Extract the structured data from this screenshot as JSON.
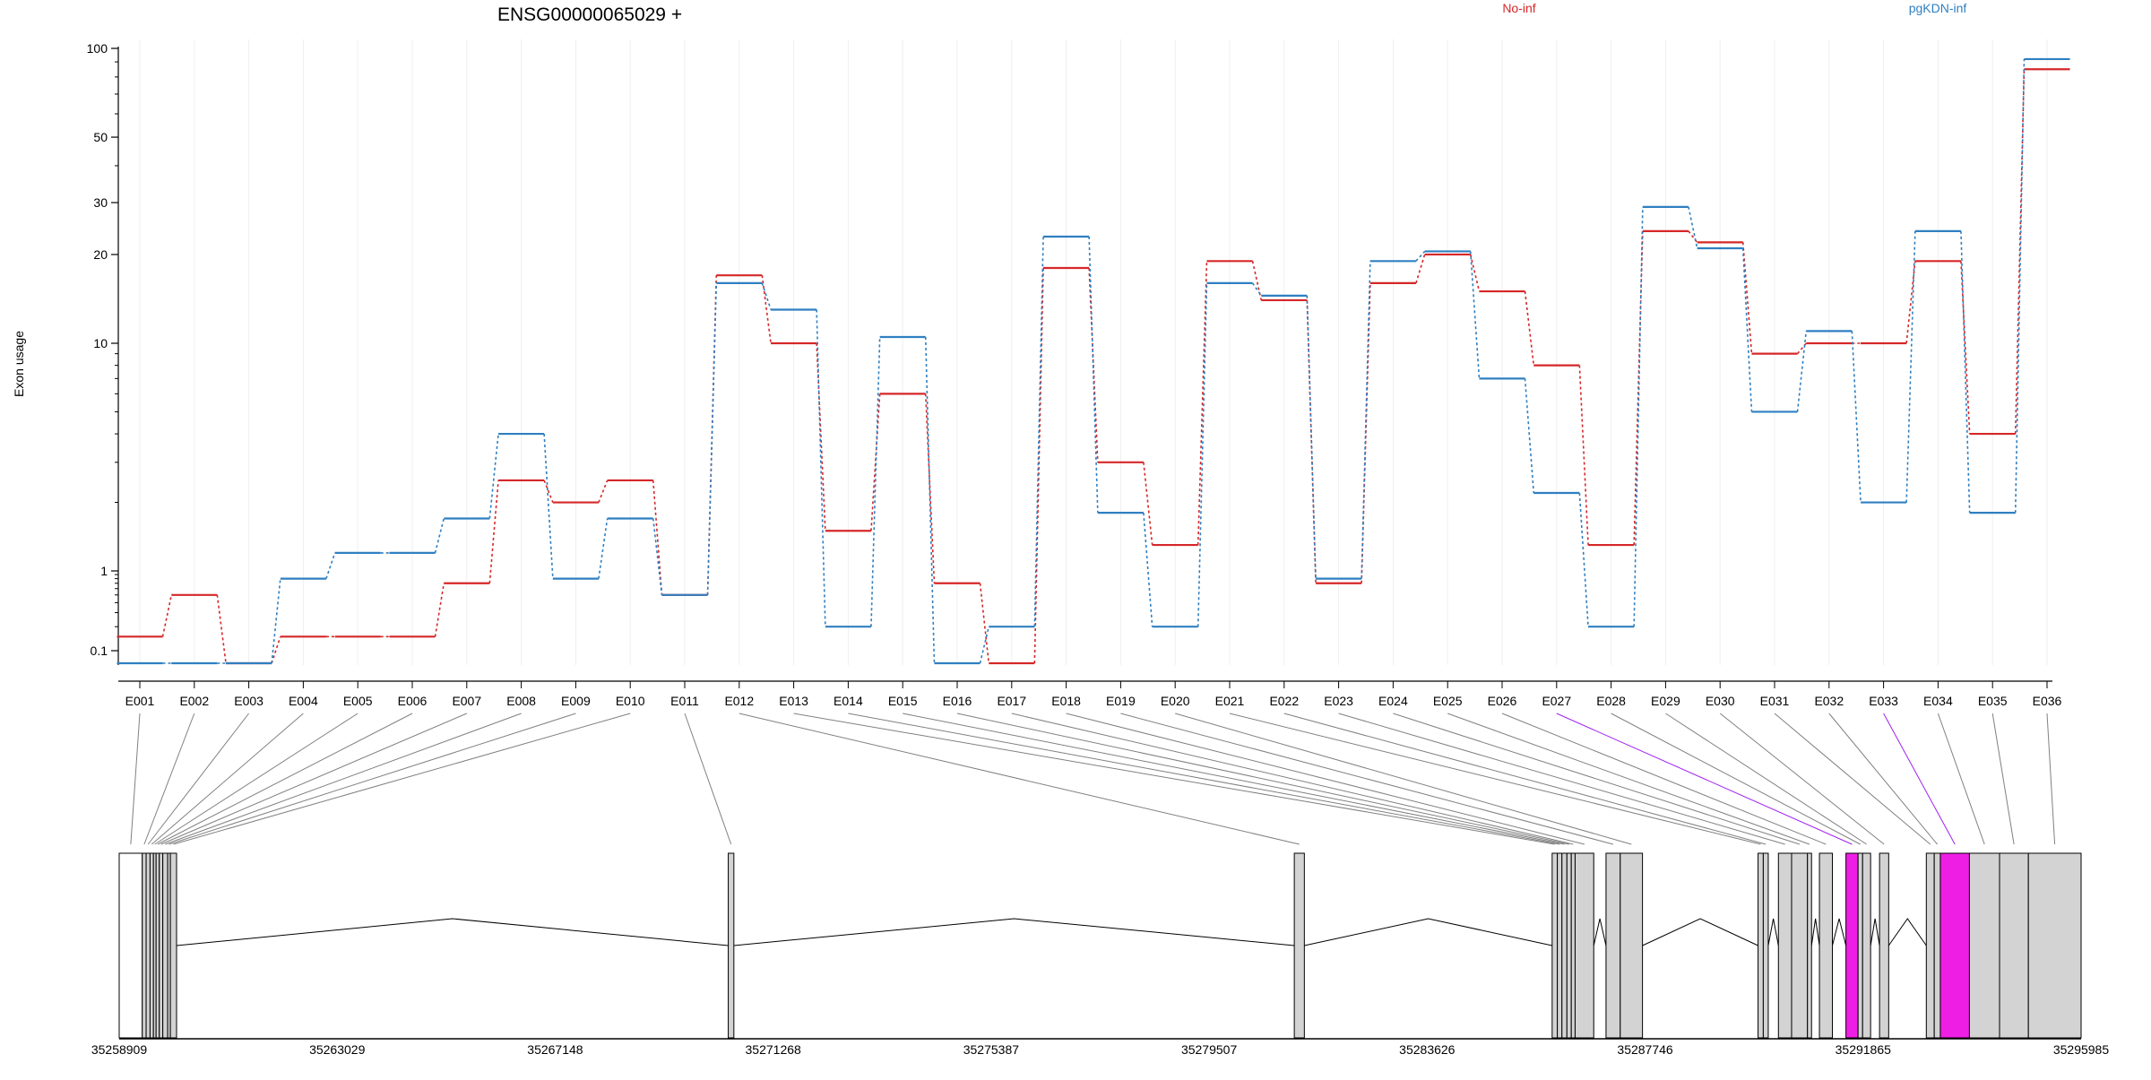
{
  "header": {
    "gene_label": "ENSG00000065029 +",
    "legend": [
      {
        "label": "No-inf",
        "color": "#d62728"
      },
      {
        "label": "pgKDN-inf",
        "color": "#2f7fc1"
      }
    ]
  },
  "chart_data": {
    "type": "line",
    "ylabel": "Exon usage",
    "yscale": "log",
    "y_ticks": [
      0.1,
      1,
      10,
      20,
      30,
      50,
      100
    ],
    "categories": [
      "E001",
      "E002",
      "E003",
      "E004",
      "E005",
      "E006",
      "E007",
      "E008",
      "E009",
      "E010",
      "E011",
      "E012",
      "E013",
      "E014",
      "E015",
      "E016",
      "E017",
      "E018",
      "E019",
      "E020",
      "E021",
      "E022",
      "E023",
      "E024",
      "E025",
      "E026",
      "E027",
      "E028",
      "E029",
      "E030",
      "E031",
      "E032",
      "E033",
      "E034",
      "E035",
      "E036"
    ],
    "series": [
      {
        "name": "No-inf",
        "color": "#d62728",
        "values": [
          0.15,
          0.5,
          0.07,
          0.15,
          0.15,
          0.15,
          0.7,
          2.5,
          2,
          2.5,
          0.5,
          17,
          10,
          1.5,
          6,
          0.7,
          0.07,
          18,
          3,
          1.3,
          19,
          14,
          0.7,
          16,
          20,
          15,
          8,
          1.3,
          24,
          22,
          9,
          10,
          10,
          19,
          4,
          85
        ]
      },
      {
        "name": "pgKDN-inf",
        "color": "#2f7fc1",
        "values": [
          0.07,
          0.07,
          0.07,
          0.8,
          1.2,
          1.2,
          1.7,
          4,
          0.8,
          1.7,
          0.5,
          16,
          13,
          0.2,
          10.5,
          0.07,
          0.2,
          23,
          1.8,
          0.2,
          16,
          14.5,
          0.8,
          19,
          20.5,
          7,
          2.2,
          0.2,
          29,
          21,
          5,
          11,
          2,
          24,
          1.8,
          92
        ]
      }
    ],
    "highlighted_exons": [
      "E027",
      "E033"
    ],
    "gene_model": {
      "highlight_color": "#ee1ee4",
      "coordinate_labels": [
        "35258909",
        "35263029",
        "35267148",
        "35271268",
        "35275387",
        "35279507",
        "35283626",
        "35287746",
        "35291865",
        "35295985"
      ],
      "exons": [
        {
          "id": "E001",
          "start": 35258909,
          "end": 35259345
        },
        {
          "id": "E002",
          "start": 35259345,
          "end": 35259418
        },
        {
          "id": "E003",
          "start": 35259418,
          "end": 35259492
        },
        {
          "id": "E004",
          "start": 35259492,
          "end": 35259556
        },
        {
          "id": "E005",
          "start": 35259556,
          "end": 35259606
        },
        {
          "id": "E006",
          "start": 35259606,
          "end": 35259667
        },
        {
          "id": "E007",
          "start": 35259667,
          "end": 35259733
        },
        {
          "id": "E008",
          "start": 35259733,
          "end": 35259825
        },
        {
          "id": "E009",
          "start": 35259825,
          "end": 35259876
        },
        {
          "id": "E010",
          "start": 35259876,
          "end": 35259993
        },
        {
          "id": "E011",
          "start": 35270419,
          "end": 35270525
        },
        {
          "id": "E012",
          "start": 35281116,
          "end": 35281306
        },
        {
          "id": "E013",
          "start": 35285989,
          "end": 35286087
        },
        {
          "id": "E014",
          "start": 35286087,
          "end": 35286174
        },
        {
          "id": "E015",
          "start": 35286174,
          "end": 35286268
        },
        {
          "id": "E016",
          "start": 35286268,
          "end": 35286351
        },
        {
          "id": "E017",
          "start": 35286351,
          "end": 35286423
        },
        {
          "id": "E018",
          "start": 35286423,
          "end": 35286775
        },
        {
          "id": "E019",
          "start": 35287007,
          "end": 35287276
        },
        {
          "id": "E020",
          "start": 35287276,
          "end": 35287696
        },
        {
          "id": "E021",
          "start": 35289880,
          "end": 35289979
        },
        {
          "id": "E022",
          "start": 35289979,
          "end": 35290073
        },
        {
          "id": "E023",
          "start": 35290265,
          "end": 35290514
        },
        {
          "id": "E024",
          "start": 35290514,
          "end": 35290814
        },
        {
          "id": "E025",
          "start": 35290814,
          "end": 35290891
        },
        {
          "id": "E026",
          "start": 35291040,
          "end": 35291285
        },
        {
          "id": "E027",
          "start": 35291541,
          "end": 35291770
        },
        {
          "id": "E028",
          "start": 35291770,
          "end": 35291856
        },
        {
          "id": "E029",
          "start": 35291856,
          "end": 35292007
        },
        {
          "id": "E030",
          "start": 35292176,
          "end": 35292349
        },
        {
          "id": "E031",
          "start": 35293060,
          "end": 35293210
        },
        {
          "id": "E032",
          "start": 35293210,
          "end": 35293325
        },
        {
          "id": "E033",
          "start": 35293325,
          "end": 35293875
        },
        {
          "id": "E034",
          "start": 35293875,
          "end": 35294444
        },
        {
          "id": "E035",
          "start": 35294444,
          "end": 35294989
        },
        {
          "id": "E036",
          "start": 35294989,
          "end": 35295985
        }
      ]
    }
  }
}
